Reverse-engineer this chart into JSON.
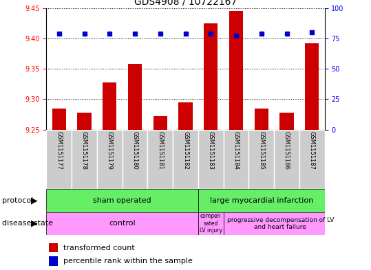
{
  "title": "GDS4908 / 10722167",
  "samples": [
    "GSM1151177",
    "GSM1151178",
    "GSM1151179",
    "GSM1151180",
    "GSM1151181",
    "GSM1151182",
    "GSM1151183",
    "GSM1151184",
    "GSM1151185",
    "GSM1151186",
    "GSM1151187"
  ],
  "transformed_count": [
    9.285,
    9.278,
    9.328,
    9.358,
    9.272,
    9.295,
    9.425,
    9.445,
    9.285,
    9.278,
    9.392
  ],
  "percentile_rank": [
    79,
    79,
    79,
    79,
    79,
    79,
    79,
    77,
    79,
    79,
    80
  ],
  "ylim_left": [
    9.25,
    9.45
  ],
  "ylim_right": [
    0,
    100
  ],
  "yticks_left": [
    9.25,
    9.3,
    9.35,
    9.4,
    9.45
  ],
  "yticks_right": [
    0,
    25,
    50,
    75,
    100
  ],
  "bar_color": "#cc0000",
  "dot_color": "#0000cc",
  "bar_bottom": 9.25,
  "sham_color": "#66ee66",
  "lmi_color": "#66ee66",
  "disease_color": "#ff99ff",
  "gray_color": "#cccccc"
}
